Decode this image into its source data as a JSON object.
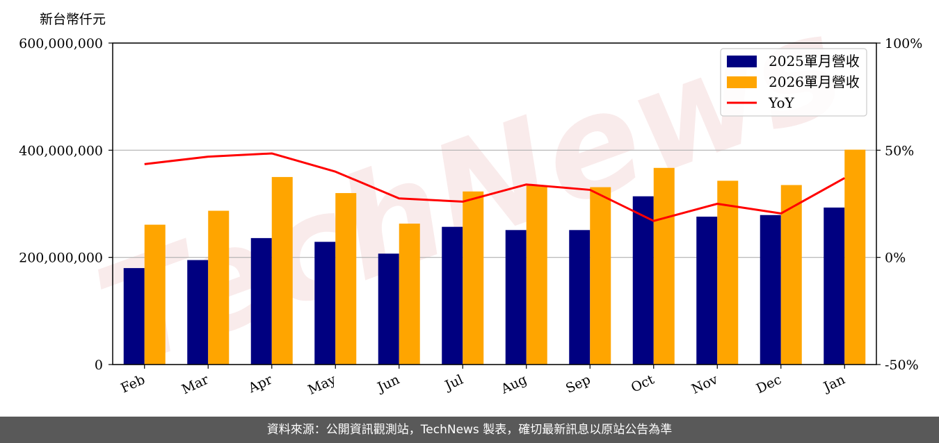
{
  "chart_data": {
    "type": "bar",
    "y_unit_label": "新台幣仟元",
    "categories": [
      "Feb",
      "Mar",
      "Apr",
      "May",
      "Jun",
      "Jul",
      "Aug",
      "Sep",
      "Oct",
      "Nov",
      "Dec",
      "Jan"
    ],
    "series": [
      {
        "name": "2025單月營收",
        "type": "bar",
        "axis": "left",
        "color": "#000080",
        "values": [
          180000000,
          195000000,
          236000000,
          229000000,
          207000000,
          257000000,
          251000000,
          251000000,
          314000000,
          276000000,
          279000000,
          293000000
        ]
      },
      {
        "name": "2026單月營收",
        "type": "bar",
        "axis": "left",
        "color": "#ffa500",
        "values": [
          261000000,
          287000000,
          350000000,
          320000000,
          263000000,
          323000000,
          334000000,
          331000000,
          367000000,
          343000000,
          335000000,
          401000000
        ]
      },
      {
        "name": "YoY",
        "type": "line",
        "axis": "right",
        "color": "#ff0000",
        "values": [
          43.5,
          47,
          48.5,
          40,
          27.5,
          26,
          34,
          31.5,
          17,
          25,
          20.5,
          37
        ]
      }
    ],
    "y_left": {
      "ylim": [
        0,
        600000000
      ],
      "ticks": [
        0,
        200000000,
        400000000,
        600000000
      ],
      "tick_labels": [
        "0",
        "200,000,000",
        "400,000,000",
        "600,000,000"
      ]
    },
    "y_right": {
      "ylim": [
        -50,
        100
      ],
      "ticks": [
        -50,
        0,
        50,
        100
      ],
      "tick_labels": [
        "-50%",
        "0%",
        "50%",
        "100%"
      ]
    },
    "grid": "horizontal",
    "legend_position": "top-right"
  },
  "watermark": "TechNews",
  "footer": {
    "source": "資料來源：公開資訊觀測站，TechNews 製表，確切最新訊息以原站公告為準"
  }
}
